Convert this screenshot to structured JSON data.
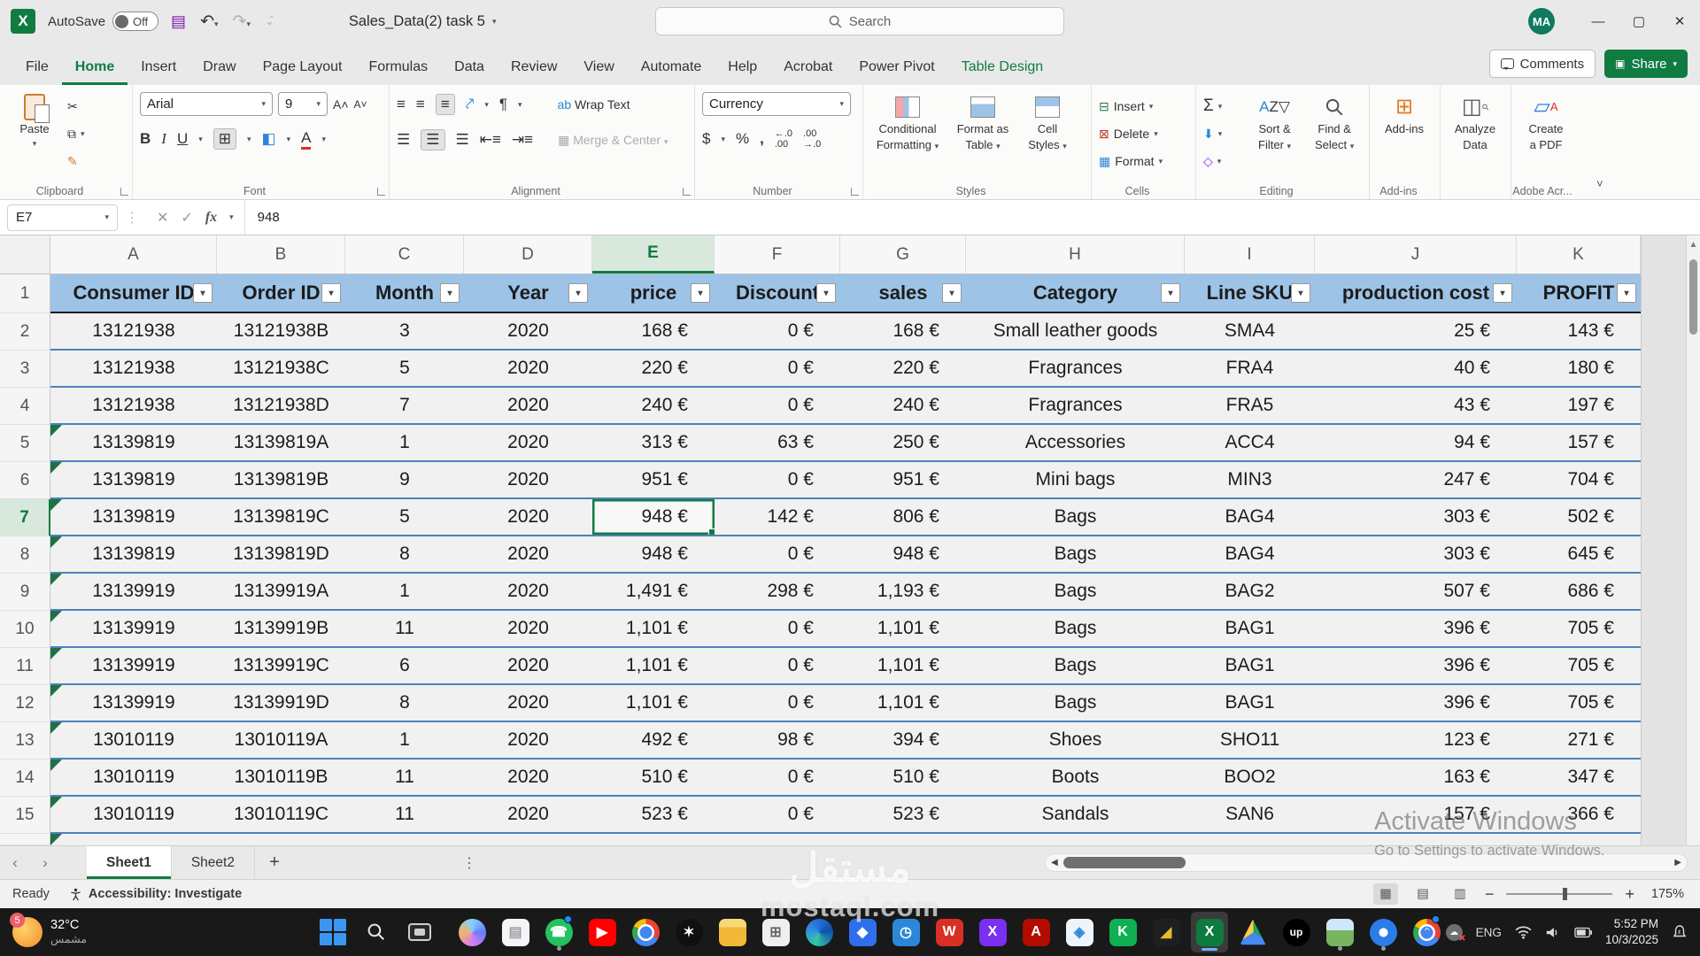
{
  "titlebar": {
    "app": "Excel",
    "autosave_label": "AutoSave",
    "autosave_state": "Off",
    "doc_title": "Sales_Data(2) task 5",
    "search_placeholder": "Search",
    "avatar_initials": "MA"
  },
  "ribbon": {
    "tabs": [
      {
        "label": "File"
      },
      {
        "label": "Home",
        "active": true
      },
      {
        "label": "Insert"
      },
      {
        "label": "Draw"
      },
      {
        "label": "Page Layout"
      },
      {
        "label": "Formulas"
      },
      {
        "label": "Data"
      },
      {
        "label": "Review"
      },
      {
        "label": "View"
      },
      {
        "label": "Automate"
      },
      {
        "label": "Help"
      },
      {
        "label": "Acrobat"
      },
      {
        "label": "Power Pivot"
      },
      {
        "label": "Table Design",
        "contextual": true
      }
    ],
    "comments_label": "Comments",
    "share_label": "Share",
    "clipboard": {
      "paste": "Paste",
      "group": "Clipboard"
    },
    "font": {
      "family": "Arial",
      "size": "9",
      "group": "Font"
    },
    "alignment": {
      "wrap": "Wrap Text",
      "merge": "Merge & Center",
      "group": "Alignment"
    },
    "number": {
      "format": "Currency",
      "group": "Number"
    },
    "styles": {
      "cf1": "Conditional",
      "cf2": "Formatting",
      "fat1": "Format as",
      "fat2": "Table",
      "cs1": "Cell",
      "cs2": "Styles",
      "group": "Styles"
    },
    "cells": {
      "insert": "Insert",
      "del": "Delete",
      "format": "Format",
      "group": "Cells"
    },
    "editing": {
      "sf1": "Sort &",
      "sf2": "Filter",
      "fs1": "Find &",
      "fs2": "Select",
      "group": "Editing"
    },
    "addins": {
      "label": "Add-ins",
      "group": "Add-ins"
    },
    "analyze": {
      "l1": "Analyze",
      "l2": "Data"
    },
    "pdf": {
      "l1": "Create",
      "l2": "a PDF",
      "group": "Adobe Acr..."
    }
  },
  "formula_bar": {
    "name_box": "E7",
    "value": "948"
  },
  "grid": {
    "columns": [
      "A",
      "B",
      "C",
      "D",
      "E",
      "F",
      "G",
      "H",
      "I",
      "J",
      "K"
    ],
    "selected_column": "E",
    "selected_cell": "E7",
    "headers": [
      "Consumer ID",
      "Order ID",
      "Month",
      "Year",
      "price",
      "Discount",
      "sales",
      "Category",
      "Line SKU",
      "production cost",
      "PROFIT"
    ],
    "rows": [
      [
        "13121938",
        "13121938B",
        "3",
        "2020",
        "168 €",
        "0 €",
        "168 €",
        "Small leather goods",
        "SMA4",
        "25 €",
        "143 €"
      ],
      [
        "13121938",
        "13121938C",
        "5",
        "2020",
        "220 €",
        "0 €",
        "220 €",
        "Fragrances",
        "FRA4",
        "40 €",
        "180 €"
      ],
      [
        "13121938",
        "13121938D",
        "7",
        "2020",
        "240 €",
        "0 €",
        "240 €",
        "Fragrances",
        "FRA5",
        "43 €",
        "197 €"
      ],
      [
        "13139819",
        "13139819A",
        "1",
        "2020",
        "313 €",
        "63 €",
        "250 €",
        "Accessories",
        "ACC4",
        "94 €",
        "157 €"
      ],
      [
        "13139819",
        "13139819B",
        "9",
        "2020",
        "951 €",
        "0 €",
        "951 €",
        "Mini bags",
        "MIN3",
        "247 €",
        "704 €"
      ],
      [
        "13139819",
        "13139819C",
        "5",
        "2020",
        "948 €",
        "142 €",
        "806 €",
        "Bags",
        "BAG4",
        "303 €",
        "502 €"
      ],
      [
        "13139819",
        "13139819D",
        "8",
        "2020",
        "948 €",
        "0 €",
        "948 €",
        "Bags",
        "BAG4",
        "303 €",
        "645 €"
      ],
      [
        "13139919",
        "13139919A",
        "1",
        "2020",
        "1,491 €",
        "298 €",
        "1,193 €",
        "Bags",
        "BAG2",
        "507 €",
        "686 €"
      ],
      [
        "13139919",
        "13139919B",
        "11",
        "2020",
        "1,101 €",
        "0 €",
        "1,101 €",
        "Bags",
        "BAG1",
        "396 €",
        "705 €"
      ],
      [
        "13139919",
        "13139919C",
        "6",
        "2020",
        "1,101 €",
        "0 €",
        "1,101 €",
        "Bags",
        "BAG1",
        "396 €",
        "705 €"
      ],
      [
        "13139919",
        "13139919D",
        "8",
        "2020",
        "1,101 €",
        "0 €",
        "1,101 €",
        "Bags",
        "BAG1",
        "396 €",
        "705 €"
      ],
      [
        "13010119",
        "13010119A",
        "1",
        "2020",
        "492 €",
        "98 €",
        "394 €",
        "Shoes",
        "SHO11",
        "123 €",
        "271 €"
      ],
      [
        "13010119",
        "13010119B",
        "11",
        "2020",
        "510 €",
        "0 €",
        "510 €",
        "Boots",
        "BOO2",
        "163 €",
        "347 €"
      ],
      [
        "13010119",
        "13010119C",
        "11",
        "2020",
        "523 €",
        "0 €",
        "523 €",
        "Sandals",
        "SAN6",
        "157 €",
        "366 €"
      ]
    ],
    "flag_rows": [
      3,
      4,
      5,
      6,
      7,
      8,
      9,
      10,
      11,
      12,
      13
    ],
    "selected": {
      "row": 5,
      "col": 4
    }
  },
  "sheet_tabs": {
    "items": [
      {
        "label": "Sheet1",
        "active": true
      },
      {
        "label": "Sheet2",
        "active": false
      }
    ],
    "add_label": "+"
  },
  "status_bar": {
    "mode": "Ready",
    "accessibility": "Accessibility: Investigate",
    "zoom": "175%"
  },
  "watermarks": {
    "activate_line1": "Activate Windows",
    "activate_line2": "Go to Settings to activate Windows.",
    "mostaql_ar": "مستقل",
    "mostaql_en": "mostaql.com"
  },
  "taskbar": {
    "weather": {
      "badge": "5",
      "temp": "32°C",
      "desc": "مشمس"
    },
    "tray": {
      "lang": "ENG",
      "time": "5:52 PM",
      "date": "10/3/2025"
    },
    "icons": [
      {
        "name": "copilot-icon",
        "cls": "grad-copilot",
        "round": true
      },
      {
        "name": "notepad-icon",
        "bg": "#f5f5f5",
        "fg": "#9aa0a6",
        "g": "▤"
      },
      {
        "name": "whatsapp-icon",
        "bg": "#23c25f",
        "fg": "#ffffff",
        "g": "☎",
        "round": true,
        "notif": true,
        "run": true
      },
      {
        "name": "youtube-icon",
        "bg": "#ff0000",
        "fg": "#ffffff",
        "g": "▶"
      },
      {
        "name": "chrome-icon",
        "cls": "grad-chrome",
        "round": true
      },
      {
        "name": "chatgpt-icon",
        "bg": "#101010",
        "fg": "#ffffff",
        "g": "✶",
        "round": true
      },
      {
        "name": "file-explorer-icon",
        "cls": "grad-folder"
      },
      {
        "name": "microsoft-store-icon",
        "bg": "#efefef",
        "fg": "#6a6a6a",
        "g": "⊞"
      },
      {
        "name": "edge-icon",
        "cls": "grad-edge",
        "round": true
      },
      {
        "name": "visual-studio-icon",
        "bg": "#2f6fed",
        "fg": "#ffffff",
        "g": "◆"
      },
      {
        "name": "clock-app-icon",
        "bg": "#2b88d8",
        "fg": "#ffffff",
        "g": "◷"
      },
      {
        "name": "red-w-app-icon",
        "bg": "#d93025",
        "fg": "#ffffff",
        "g": "W"
      },
      {
        "name": "purple-app-icon",
        "bg": "#7b2ff2",
        "fg": "#ffffff",
        "g": "X"
      },
      {
        "name": "acrobat-icon",
        "bg": "#b30b00",
        "fg": "#ffffff",
        "g": "A"
      },
      {
        "name": "blue-grid-app-icon",
        "bg": "#eef4fb",
        "fg": "#2b88d8",
        "g": "◈"
      },
      {
        "name": "green-k-app-icon",
        "bg": "#0faf54",
        "fg": "#ffffff",
        "g": "K"
      },
      {
        "name": "gold-app-icon",
        "bg": "#1f1f1f",
        "fg": "#e8b931",
        "g": "◢"
      },
      {
        "name": "excel-icon",
        "cls": "ic-excel",
        "g": "X",
        "active": true
      },
      {
        "name": "google-drive-icon",
        "cls": "grad-drive"
      },
      {
        "name": "upwork-icon",
        "bg": "#000000",
        "fg": "#ffffff",
        "g": "up",
        "round": true,
        "small": true
      },
      {
        "name": "photo-thumbnail-icon",
        "cls": "grad-photo",
        "run": true
      },
      {
        "name": "photos-icon",
        "cls": "grad-photos",
        "round": true,
        "run": true
      },
      {
        "name": "chrome-2-icon",
        "cls": "grad-chrome",
        "round": true,
        "notif": true
      }
    ]
  }
}
